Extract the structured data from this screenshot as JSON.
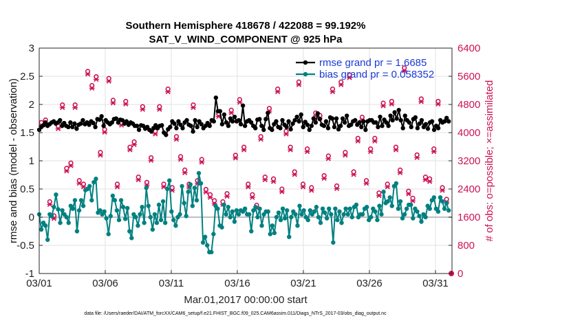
{
  "chart_data": {
    "type": "line",
    "title_line1": "Southern Hemisphere 418678 / 422088 = 99.192%",
    "title_line2": "SAT_V_WIND_COMPONENT @ 925 hPa",
    "xlabel": "Mar.01,2017 00:00:00 start",
    "ylabel": "rmse and bias (model - observation)",
    "ylabel_right": "# of obs: o=possible; ×=assimilated",
    "footer": "data file: /Users/raeder/DAI/ATM_forcXX/CAM6_setup/f.e21.FHIST_BGC.f09_025.CAM6assim.011/Diags_NTrS_2017-03/obs_diag_output.nc",
    "xlim": [
      0,
      31.25
    ],
    "ylim": [
      -1,
      3
    ],
    "ylim_right": [
      0,
      6400
    ],
    "x_ticks": [
      0,
      5,
      10,
      15,
      20,
      25,
      30
    ],
    "x_tick_labels": [
      "03/01",
      "03/06",
      "03/11",
      "03/16",
      "03/21",
      "03/26",
      "03/31"
    ],
    "y_ticks": [
      -1,
      -0.5,
      0,
      0.5,
      1,
      1.5,
      2,
      2.5,
      3
    ],
    "y_tick_labels": [
      "-1",
      "-0.5",
      "0",
      "0.5",
      "1",
      "1.5",
      "2",
      "2.5",
      "3"
    ],
    "y_right_ticks": [
      0,
      800,
      1600,
      2400,
      3200,
      4000,
      4800,
      5600,
      6400
    ],
    "y_right_tick_labels": [
      "0",
      "800",
      "1600",
      "2400",
      "3200",
      "4000",
      "4800",
      "5600",
      "6400"
    ],
    "legend": [
      {
        "label": "rmse grand pr = 1.6685",
        "color": "#000000"
      },
      {
        "label": "bias grand pr = 0.058352",
        "color": "#007d7d"
      }
    ],
    "colors": {
      "rmse": "#000000",
      "bias": "#008080",
      "obs": "#cc1155",
      "zero": "#bfbfbf",
      "grid": "#e2e2e2"
    },
    "series": [
      {
        "name": "rmse",
        "values": [
          1.55,
          1.6,
          1.63,
          1.68,
          1.62,
          1.65,
          1.68,
          1.7,
          1.66,
          1.68,
          1.72,
          1.62,
          1.67,
          1.62,
          1.6,
          1.68,
          1.6,
          1.66,
          1.57,
          1.64,
          1.66,
          1.72,
          1.65,
          1.68,
          1.64,
          1.7,
          1.67,
          1.6,
          1.74,
          1.73,
          1.79,
          1.62,
          1.72,
          1.68,
          1.65,
          1.68,
          1.74,
          1.75,
          1.68,
          1.73,
          1.72,
          1.66,
          1.7,
          1.64,
          1.68,
          1.66,
          1.62,
          1.62,
          1.55,
          1.63,
          1.62,
          1.57,
          1.6,
          1.55,
          1.52,
          1.58,
          1.63,
          1.58,
          1.62,
          1.63,
          1.5,
          1.46,
          1.56,
          1.6,
          1.7,
          1.66,
          1.58,
          1.7,
          1.64,
          1.58,
          1.68,
          1.72,
          1.64,
          1.62,
          1.52,
          1.72,
          1.6,
          1.7,
          1.65,
          1.58,
          1.62,
          1.67,
          1.62,
          1.72,
          1.7,
          2.12,
          1.88,
          1.88,
          1.65,
          1.82,
          1.68,
          1.62,
          1.75,
          1.7,
          1.78,
          1.7,
          1.72,
          1.65,
          1.98,
          1.62,
          1.7,
          1.72,
          1.68,
          1.62,
          1.58,
          1.73,
          1.74,
          1.62,
          1.55,
          1.74,
          1.85,
          1.58,
          1.55,
          1.65,
          1.7,
          1.6,
          1.58,
          1.72,
          1.64,
          1.6,
          1.7,
          1.56,
          1.66,
          1.72,
          1.78,
          1.7,
          1.82,
          1.6,
          1.69,
          1.64,
          1.55,
          1.62,
          1.75,
          1.68,
          1.84,
          1.74,
          1.64,
          1.62,
          1.7,
          1.58,
          1.77,
          1.75,
          1.6,
          1.75,
          1.56,
          1.62,
          1.75,
          1.68,
          1.8,
          1.62,
          1.64,
          1.7,
          1.72,
          1.64,
          1.68,
          1.6,
          1.7,
          1.55,
          1.7,
          1.72,
          1.72,
          1.68,
          1.68,
          1.6,
          1.78,
          1.62,
          1.73,
          1.68,
          1.62,
          1.8,
          1.72,
          1.86,
          1.75,
          1.9,
          1.72,
          1.58,
          1.8,
          1.72,
          1.68,
          1.6,
          1.74,
          1.77,
          1.58,
          1.66,
          1.72,
          1.6,
          1.65,
          1.57,
          1.68,
          1.7,
          1.55,
          1.62,
          1.58,
          1.72,
          1.68,
          1.7,
          1.76,
          1.7
        ]
      },
      {
        "name": "bias",
        "values": [
          0.05,
          -0.22,
          -0.1,
          -0.15,
          -0.4,
          0.05,
          0.02,
          0.18,
          0.4,
          0.14,
          -0.1,
          0.12,
          0.05,
          0.0,
          -0.1,
          0.2,
          0.15,
          0.3,
          -0.25,
          0.12,
          0.3,
          0.2,
          0.48,
          0.5,
          0.55,
          0.3,
          0.62,
          0.68,
          0.08,
          0.12,
          0.05,
          0.1,
          -0.02,
          -0.3,
          0.02,
          0.38,
          0.3,
          0.12,
          -0.05,
          0.3,
          0.18,
          -0.03,
          0.16,
          -0.25,
          -0.37,
          0.05,
          0.0,
          -0.15,
          0.05,
          0.18,
          -0.1,
          0.52,
          0.2,
          0.0,
          -0.22,
          0.05,
          -0.1,
          0.22,
          -0.05,
          0.28,
          -0.1,
          0.5,
          0.65,
          0.1,
          -0.05,
          -0.15,
          0.0,
          0.05,
          0.55,
          0.25,
          0.02,
          0.45,
          0.58,
          0.2,
          0.52,
          0.3,
          0.78,
          0.6,
          -0.45,
          -0.35,
          -0.5,
          -0.62,
          -0.62,
          -0.3,
          0.2,
          0.15,
          -0.15,
          -0.18,
          0.22,
          0.05,
          0.18,
          0.0,
          0.1,
          -0.08,
          0.12,
          0.05,
          0.12,
          0.1,
          0.15,
          0.05,
          0.05,
          -0.25,
          0.12,
          0.18,
          0.0,
          0.15,
          -0.15,
          0.05,
          0.1,
          0.1,
          -0.3,
          -0.15,
          -0.28,
          0.0,
          0.08,
          -0.05,
          0.15,
          -0.02,
          0.12,
          -0.35,
          0.0,
          0.1,
          0.05,
          -0.15,
          0.2,
          0.05,
          0.12,
          0.0,
          -0.05,
          0.12,
          0.05,
          0.1,
          0.18,
          0.0,
          -0.1,
          0.15,
          0.08,
          -0.02,
          0.15,
          0.05,
          -0.45,
          0.15,
          -0.05,
          0.1,
          -0.1,
          0.05,
          0.15,
          0.05,
          0.15,
          0.0,
          0.18,
          0.22,
          0.0,
          0.05,
          0.05,
          0.15,
          0.18,
          -0.05,
          0.0,
          0.15,
          0.1,
          -0.05,
          0.2,
          0.05,
          0.45,
          0.25,
          0.28,
          0.35,
          0.2,
          0.55,
          0.6,
          0.15,
          0.28,
          -0.02,
          0.05,
          0.15,
          0.22,
          0.22,
          -0.02,
          0.15,
          0.1,
          0.02,
          -0.08,
          0.05,
          0.0,
          0.2,
          0.15,
          0.3,
          0.35,
          0.15,
          0.1,
          0.35,
          0.28,
          0.15,
          0.25,
          0.12
        ]
      },
      {
        "name": "obs_possible",
        "values": [
          4250,
          4320,
          2000,
          1600,
          4150,
          4750,
          2950,
          3100,
          4750,
          2600,
          2500,
          5700,
          5300,
          5550,
          3400,
          4050,
          5500,
          4880,
          2500,
          4250,
          4850,
          3550,
          3700,
          2700,
          4700,
          2550,
          3250,
          4000,
          4700,
          2500,
          5200,
          2400,
          3850,
          3280,
          2900,
          2500,
          4750,
          2600,
          3200,
          2350,
          2200,
          2030,
          4500,
          2000,
          2230,
          4600,
          3320,
          4900,
          3550,
          2500,
          2200,
          1900,
          3850,
          2700,
          4650,
          2650,
          5200,
          2360,
          4000,
          3550,
          2850,
          5400,
          2500,
          3500,
          2400,
          4520,
          4450,
          2740,
          3300,
          5200,
          2450,
          5400,
          3400,
          5600,
          2850,
          3800,
          4400,
          2600,
          3500,
          3800,
          2250,
          4800,
          2500,
          4850,
          3550,
          2900,
          5800,
          2300,
          2100,
          3330,
          4920,
          2700,
          2650,
          3500,
          4850,
          2400,
          2070
        ]
      },
      {
        "name": "obs_assimilated",
        "values": [
          4220,
          4300,
          1980,
          1580,
          4130,
          4730,
          2930,
          3080,
          4730,
          2580,
          2480,
          5680,
          5280,
          5530,
          3380,
          4030,
          5480,
          4860,
          2480,
          4230,
          4830,
          3530,
          3680,
          2680,
          4680,
          2530,
          3230,
          3980,
          4680,
          2480,
          5180,
          2380,
          3830,
          3260,
          2880,
          2480,
          4730,
          2580,
          3180,
          2330,
          2180,
          2010,
          4480,
          1980,
          2210,
          4580,
          3300,
          4880,
          3530,
          2480,
          2180,
          1880,
          3830,
          2680,
          4630,
          2630,
          5180,
          2340,
          3980,
          3530,
          2830,
          5380,
          2480,
          3480,
          2380,
          4500,
          4430,
          2720,
          3280,
          5180,
          2430,
          5380,
          3380,
          5580,
          2830,
          3780,
          4380,
          2580,
          3480,
          3780,
          2230,
          4780,
          2480,
          4830,
          3530,
          2880,
          5780,
          2280,
          2080,
          3310,
          4900,
          2680,
          2630,
          3480,
          4830,
          2380,
          2050
        ]
      }
    ],
    "obs_final": {
      "x": 31.2,
      "possible": 0,
      "assimilated": 0
    }
  }
}
